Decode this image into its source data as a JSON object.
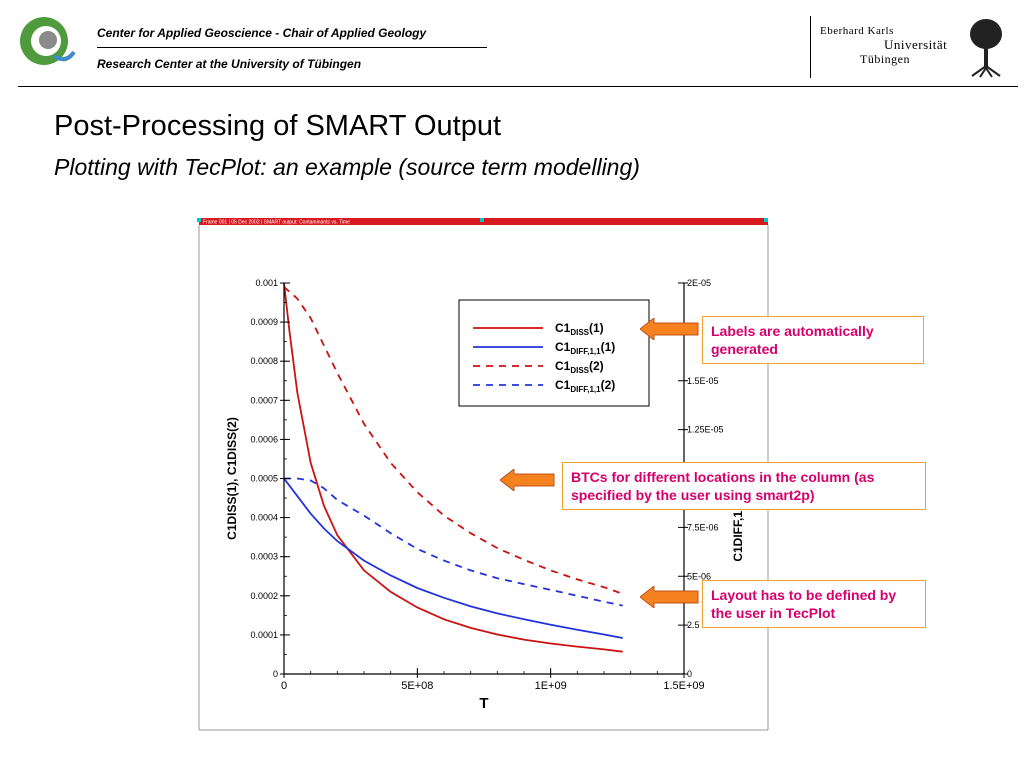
{
  "header": {
    "line1": "Center for Applied Geoscience - Chair of Applied Geology",
    "line2": "Research Center at the University of Tübingen",
    "university": {
      "line1": "Eberhard Karls",
      "line2": "Universität",
      "line3": "Tübingen"
    }
  },
  "slide": {
    "title": "Post-Processing of SMART Output",
    "subtitle": "Plotting with TecPlot: an example (source term modelling)"
  },
  "plot_header_text": "Frame 001 | 05 Dec 2002 | SMART output: Contaminants vs. Time",
  "callouts": {
    "labels": "Labels are automatically generated",
    "btcs": "BTCs for different locations in the column (as specified by the user using smart2p)",
    "layout": "Layout has to be defined by the user in TecPlot"
  },
  "colors": {
    "red": "#cc1111",
    "blue": "#2233dd",
    "callout_text": "#d6006c",
    "callout_border": "#f0a030",
    "arrow_fill": "#f5821f",
    "plot_header_bar": "#d71920",
    "plot_handle": "#00c8c8"
  },
  "chart_data": {
    "type": "line",
    "xlabel": "T",
    "ylabel_left": "C1DISS(1), C1DISS(2)",
    "ylabel_right": "C1DIFF,1,1(2)",
    "xlim": [
      0,
      1500000000
    ],
    "ylim_left": [
      0,
      0.001
    ],
    "ylim_right": [
      0,
      2e-05
    ],
    "x_ticks": [
      "0",
      "5E+08",
      "1E+09",
      "1.5E+09"
    ],
    "y_ticks_left": [
      "0",
      "0.0001",
      "0.0002",
      "0.0003",
      "0.0004",
      "0.0005",
      "0.0006",
      "0.0007",
      "0.0008",
      "0.0009",
      "0.001"
    ],
    "y_ticks_right": [
      "0",
      "2.5",
      "5E-06",
      "7.5E-06",
      "",
      "1.25E-05",
      "1.5E-05",
      ".7",
      "2E-05"
    ],
    "legend": {
      "position": "top-right",
      "entries": [
        {
          "base": "C1",
          "sub": "DISS",
          "suffix": "(1)",
          "color": "#cc1111",
          "dash": false
        },
        {
          "base": "C1",
          "sub": "DIFF,1,1",
          "suffix": "(1)",
          "color": "#2233dd",
          "dash": false
        },
        {
          "base": "C1",
          "sub": "DISS",
          "suffix": "(2)",
          "color": "#cc1111",
          "dash": true
        },
        {
          "base": "C1",
          "sub": "DIFF,1,1",
          "suffix": "(2)",
          "color": "#2233dd",
          "dash": true
        }
      ]
    },
    "series": [
      {
        "name": "C1DISS(1)",
        "color": "#cc1111",
        "dash": false,
        "x": [
          0,
          20000000,
          50000000,
          100000000,
          150000000,
          200000000,
          300000000,
          400000000,
          500000000,
          600000000,
          700000000,
          800000000,
          900000000,
          1000000000,
          1100000000,
          1200000000,
          1270000000
        ],
        "y": [
          0.001,
          0.00088,
          0.00072,
          0.00054,
          0.00043,
          0.000355,
          0.000265,
          0.00021,
          0.00017,
          0.00014,
          0.000118,
          0.000101,
          8.8e-05,
          7.8e-05,
          7e-05,
          6.3e-05,
          5.7e-05
        ]
      },
      {
        "name": "C1DIFF,1,1(1)",
        "color": "#2233dd",
        "dash": false,
        "x": [
          0,
          50000000,
          100000000,
          150000000,
          200000000,
          300000000,
          400000000,
          500000000,
          600000000,
          700000000,
          800000000,
          900000000,
          1000000000,
          1100000000,
          1200000000,
          1270000000
        ],
        "y": [
          0.0005,
          0.000455,
          0.00041,
          0.000372,
          0.00034,
          0.00029,
          0.000252,
          0.00022,
          0.000195,
          0.000173,
          0.000155,
          0.00014,
          0.000126,
          0.000113,
          0.000101,
          9.2e-05
        ]
      },
      {
        "name": "C1DISS(2)",
        "color": "#cc1111",
        "dash": true,
        "x": [
          0,
          50000000,
          100000000,
          150000000,
          200000000,
          300000000,
          400000000,
          500000000,
          600000000,
          700000000,
          800000000,
          900000000,
          1000000000,
          1100000000,
          1200000000,
          1270000000
        ],
        "y": [
          0.00099,
          0.00096,
          0.00091,
          0.00084,
          0.00077,
          0.00064,
          0.00054,
          0.000465,
          0.000405,
          0.00036,
          0.000322,
          0.000292,
          0.000265,
          0.000242,
          0.000222,
          0.000205
        ]
      },
      {
        "name": "C1DIFF,1,1(2)",
        "color": "#2233dd",
        "dash": true,
        "x": [
          0,
          50000000,
          100000000,
          150000000,
          200000000,
          300000000,
          400000000,
          500000000,
          600000000,
          700000000,
          800000000,
          900000000,
          1000000000,
          1100000000,
          1200000000,
          1270000000
        ],
        "y": [
          1e-05,
          1e-05,
          9.9e-06,
          9.5e-06,
          8.9e-06,
          8.1e-06,
          7.2e-06,
          6.4e-06,
          5.8e-06,
          5.3e-06,
          4.9e-06,
          4.6e-06,
          4.3e-06,
          4e-06,
          3.7e-06,
          3.5e-06
        ]
      }
    ]
  }
}
